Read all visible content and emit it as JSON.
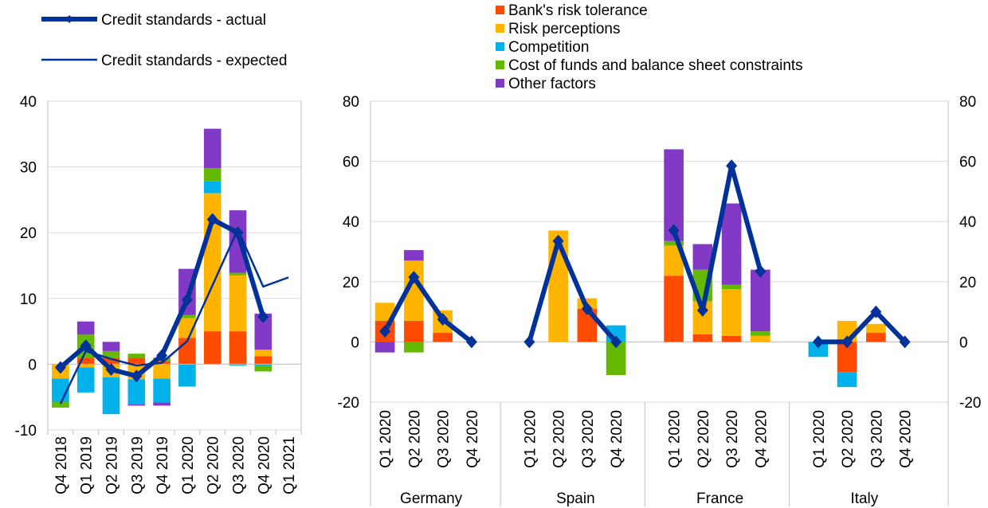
{
  "colors": {
    "risk_tolerance": "#FF4B00",
    "risk_perceptions": "#FFB400",
    "competition": "#00B1EA",
    "cost_of_funds": "#65B800",
    "other": "#8139C6",
    "line": "#003299",
    "grid": "#D9D9D9",
    "axis": "#BFBFBF"
  },
  "legend": {
    "actual": "Credit standards - actual",
    "expected": "Credit standards - expected",
    "factors": [
      {
        "key": "risk_tolerance",
        "label": "Bank's risk tolerance"
      },
      {
        "key": "risk_perceptions",
        "label": "Risk perceptions"
      },
      {
        "key": "competition",
        "label": "Competition"
      },
      {
        "key": "cost_of_funds",
        "label": "Cost of funds and balance sheet constraints"
      },
      {
        "key": "other",
        "label": "Other factors"
      }
    ]
  },
  "chart_data": [
    {
      "type": "bar",
      "stacked": true,
      "categories": [
        "Q4 2018",
        "Q1 2019",
        "Q2 2019",
        "Q3 2019",
        "Q4 2019",
        "Q1 2020",
        "Q2 2020",
        "Q3 2020",
        "Q4 2020",
        "Q1 2021"
      ],
      "ylim": [
        -10,
        40
      ],
      "yticks": [
        "-10",
        "0",
        "10",
        "20",
        "30",
        "40"
      ],
      "grid": true,
      "series": [
        {
          "key": "risk_tolerance",
          "values": [
            0,
            1,
            1,
            1,
            0.5,
            4,
            5,
            5,
            1.2,
            null
          ]
        },
        {
          "key": "risk_perceptions",
          "values": [
            -2.2,
            -0.5,
            -2,
            -2.3,
            -2.2,
            3,
            21,
            8.5,
            1,
            null
          ]
        },
        {
          "key": "competition",
          "values": [
            -3.5,
            -3.8,
            -5.6,
            -3.8,
            -3.6,
            -3.4,
            1.8,
            -0.2,
            -0.3,
            null
          ]
        },
        {
          "key": "cost_of_funds",
          "values": [
            -0.9,
            3.5,
            1,
            0.6,
            0.5,
            0.5,
            2,
            0.4,
            -0.8,
            null
          ]
        },
        {
          "key": "other",
          "values": [
            0,
            2,
            1.4,
            -0.2,
            -0.5,
            7,
            6,
            9.5,
            5.5,
            null
          ]
        }
      ],
      "lines": [
        {
          "key": "actual",
          "values": [
            -0.5,
            2.8,
            -0.8,
            -1.8,
            1.3,
            9.8,
            22,
            20,
            7.2,
            null
          ]
        },
        {
          "key": "expected",
          "values": [
            -6,
            2,
            0.8,
            -0.2,
            0.2,
            3.5,
            12,
            20.5,
            11.8,
            13.2
          ]
        }
      ]
    },
    {
      "type": "bar",
      "stacked": true,
      "groups": [
        {
          "name": "Germany",
          "categories": [
            "Q1 2020",
            "Q2 2020",
            "Q3 2020",
            "Q4 2020"
          ]
        },
        {
          "name": "Spain",
          "categories": [
            "Q1 2020",
            "Q2 2020",
            "Q3 2020",
            "Q4 2020"
          ]
        },
        {
          "name": "France",
          "categories": [
            "Q1 2020",
            "Q2 2020",
            "Q3 2020",
            "Q4 2020"
          ]
        },
        {
          "name": "Italy",
          "categories": [
            "Q1 2020",
            "Q2 2020",
            "Q3 2020",
            "Q4 2020"
          ]
        }
      ],
      "ylim": [
        -20,
        80
      ],
      "yticks": [
        "-20",
        "0",
        "20",
        "40",
        "60",
        "80"
      ],
      "y2ticks": [
        "-20",
        "0",
        "20",
        "40",
        "60",
        "80"
      ],
      "grid": true,
      "series": [
        {
          "key": "risk_tolerance",
          "values": [
            7,
            7,
            3,
            0,
            0,
            0,
            11,
            0,
            22,
            2.5,
            2,
            0,
            0,
            -10,
            3,
            0
          ]
        },
        {
          "key": "risk_perceptions",
          "values": [
            6,
            20,
            7.5,
            0,
            0,
            37,
            3.5,
            0,
            10,
            11,
            15.5,
            2,
            0,
            7,
            3,
            0
          ]
        },
        {
          "key": "competition",
          "values": [
            0,
            0,
            0,
            0,
            0,
            0,
            0,
            5.5,
            0,
            0,
            0,
            0,
            -5,
            -5,
            0,
            0
          ]
        },
        {
          "key": "cost_of_funds",
          "values": [
            0,
            -3.5,
            0,
            0,
            0,
            0,
            0,
            -11,
            1.5,
            10.5,
            1.5,
            1.5,
            0,
            0,
            0,
            0
          ]
        },
        {
          "key": "other",
          "values": [
            -3.5,
            3.5,
            0,
            0,
            0,
            0,
            0,
            0,
            30.5,
            8.5,
            27,
            20.5,
            0,
            0,
            0,
            0
          ]
        }
      ],
      "lines": [
        {
          "key": "actual",
          "values": [
            3.5,
            21.5,
            7.5,
            0,
            0,
            33.5,
            11,
            0,
            37,
            10.5,
            58.5,
            23.5,
            0,
            0,
            10,
            0
          ]
        }
      ]
    }
  ]
}
